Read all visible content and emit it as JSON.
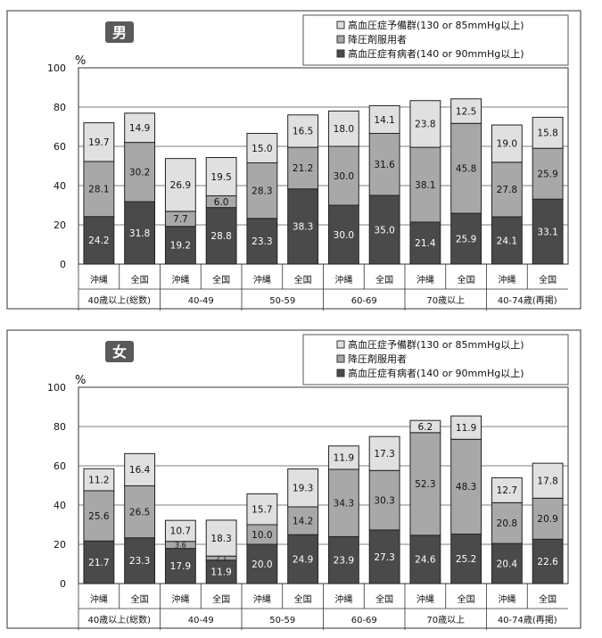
{
  "colors": {
    "prehypertension": "#e0e0e0",
    "medication": "#a8a8a8",
    "hypertension": "#4a4a4a",
    "frame": "#333333"
  },
  "legend": [
    "高血圧症予備群(130 or 85mmHg以上)",
    "降圧剤服用者",
    "高血圧症有病者(140 or 90mmHg以上)"
  ],
  "chart_data": [
    {
      "type": "bar",
      "title": "男",
      "ylabel": "%",
      "ylim": [
        0,
        100
      ],
      "yticks": [
        "0",
        "20",
        "40",
        "60",
        "80",
        "100"
      ],
      "categories": [
        "沖縄",
        "全国",
        "沖縄",
        "全国",
        "沖縄",
        "全国",
        "沖縄",
        "全国",
        "沖縄",
        "全国",
        "沖縄",
        "全国"
      ],
      "groups": [
        "40歳以上(総数)",
        "40-49",
        "50-59",
        "60-69",
        "70歳以上",
        "40-74歳(再掲)"
      ],
      "series": [
        {
          "name": "高血圧症有病者(140 or 90mmHg以上)",
          "values": [
            24.2,
            31.8,
            19.2,
            28.8,
            23.3,
            38.3,
            30.0,
            35.0,
            21.4,
            25.9,
            24.1,
            33.1
          ],
          "labels": [
            "24.2",
            "31.8",
            "19.2",
            "28.8",
            "23.3",
            "38.3",
            "30.0",
            "35.0",
            "21.4",
            "25.9",
            "24.1",
            "33.1"
          ]
        },
        {
          "name": "降圧剤服用者",
          "values": [
            28.1,
            30.2,
            7.7,
            6.0,
            28.3,
            21.2,
            30.0,
            31.6,
            38.1,
            45.8,
            27.8,
            25.9
          ],
          "labels": [
            "28.1",
            "30.2",
            "7.7",
            "6.0",
            "28.3",
            "21.2",
            "30.0",
            "31.6",
            "38.1",
            "45.8",
            "27.8",
            "25.9"
          ]
        },
        {
          "name": "高血圧症予備群(130 or 85mmHg以上)",
          "values": [
            19.7,
            14.9,
            26.9,
            19.5,
            15.0,
            16.5,
            18.0,
            14.1,
            23.8,
            12.5,
            19.0,
            15.8
          ],
          "labels": [
            "19.7",
            "14.9",
            "26.9",
            "19.5",
            "15.0",
            "16.5",
            "18.0",
            "14.1",
            "23.8",
            "12.5",
            "19.0",
            "15.8"
          ]
        }
      ]
    },
    {
      "type": "bar",
      "title": "女",
      "ylabel": "%",
      "ylim": [
        0,
        100
      ],
      "yticks": [
        "0",
        "20",
        "40",
        "60",
        "80",
        "100"
      ],
      "categories": [
        "沖縄",
        "全国",
        "沖縄",
        "全国",
        "沖縄",
        "全国",
        "沖縄",
        "全国",
        "沖縄",
        "全国",
        "沖縄",
        "全国"
      ],
      "groups": [
        "40歳以上(総数)",
        "40-49",
        "50-59",
        "60-69",
        "70歳以上",
        "40-74歳(再掲)"
      ],
      "series": [
        {
          "name": "高血圧症有病者(140 or 90mmHg以上)",
          "values": [
            21.7,
            23.3,
            17.9,
            11.9,
            20.0,
            24.9,
            23.9,
            27.3,
            24.6,
            25.2,
            20.4,
            22.6
          ],
          "labels": [
            "21.7",
            "23.3",
            "17.9",
            "11.9",
            "20.0",
            "24.9",
            "23.9",
            "27.3",
            "24.6",
            "25.2",
            "20.4",
            "22.6"
          ]
        },
        {
          "name": "降圧剤服用者",
          "values": [
            25.6,
            26.5,
            3.6,
            2.1,
            10.0,
            14.2,
            34.3,
            30.3,
            52.3,
            48.3,
            20.8,
            20.9
          ],
          "labels": [
            "25.6",
            "26.5",
            "3.6",
            "2.1",
            "10.0",
            "14.2",
            "34.3",
            "30.3",
            "52.3",
            "48.3",
            "20.8",
            "20.9"
          ]
        },
        {
          "name": "高血圧症予備群(130 or 85mmHg以上)",
          "values": [
            11.2,
            16.4,
            10.7,
            18.3,
            15.7,
            19.3,
            11.9,
            17.3,
            6.2,
            11.9,
            12.7,
            17.8
          ],
          "labels": [
            "11.2",
            "16.4",
            "10.7",
            "18.3",
            "15.7",
            "19.3",
            "11.9",
            "17.3",
            "6.2",
            "11.9",
            "12.7",
            "17.8"
          ]
        }
      ]
    }
  ]
}
